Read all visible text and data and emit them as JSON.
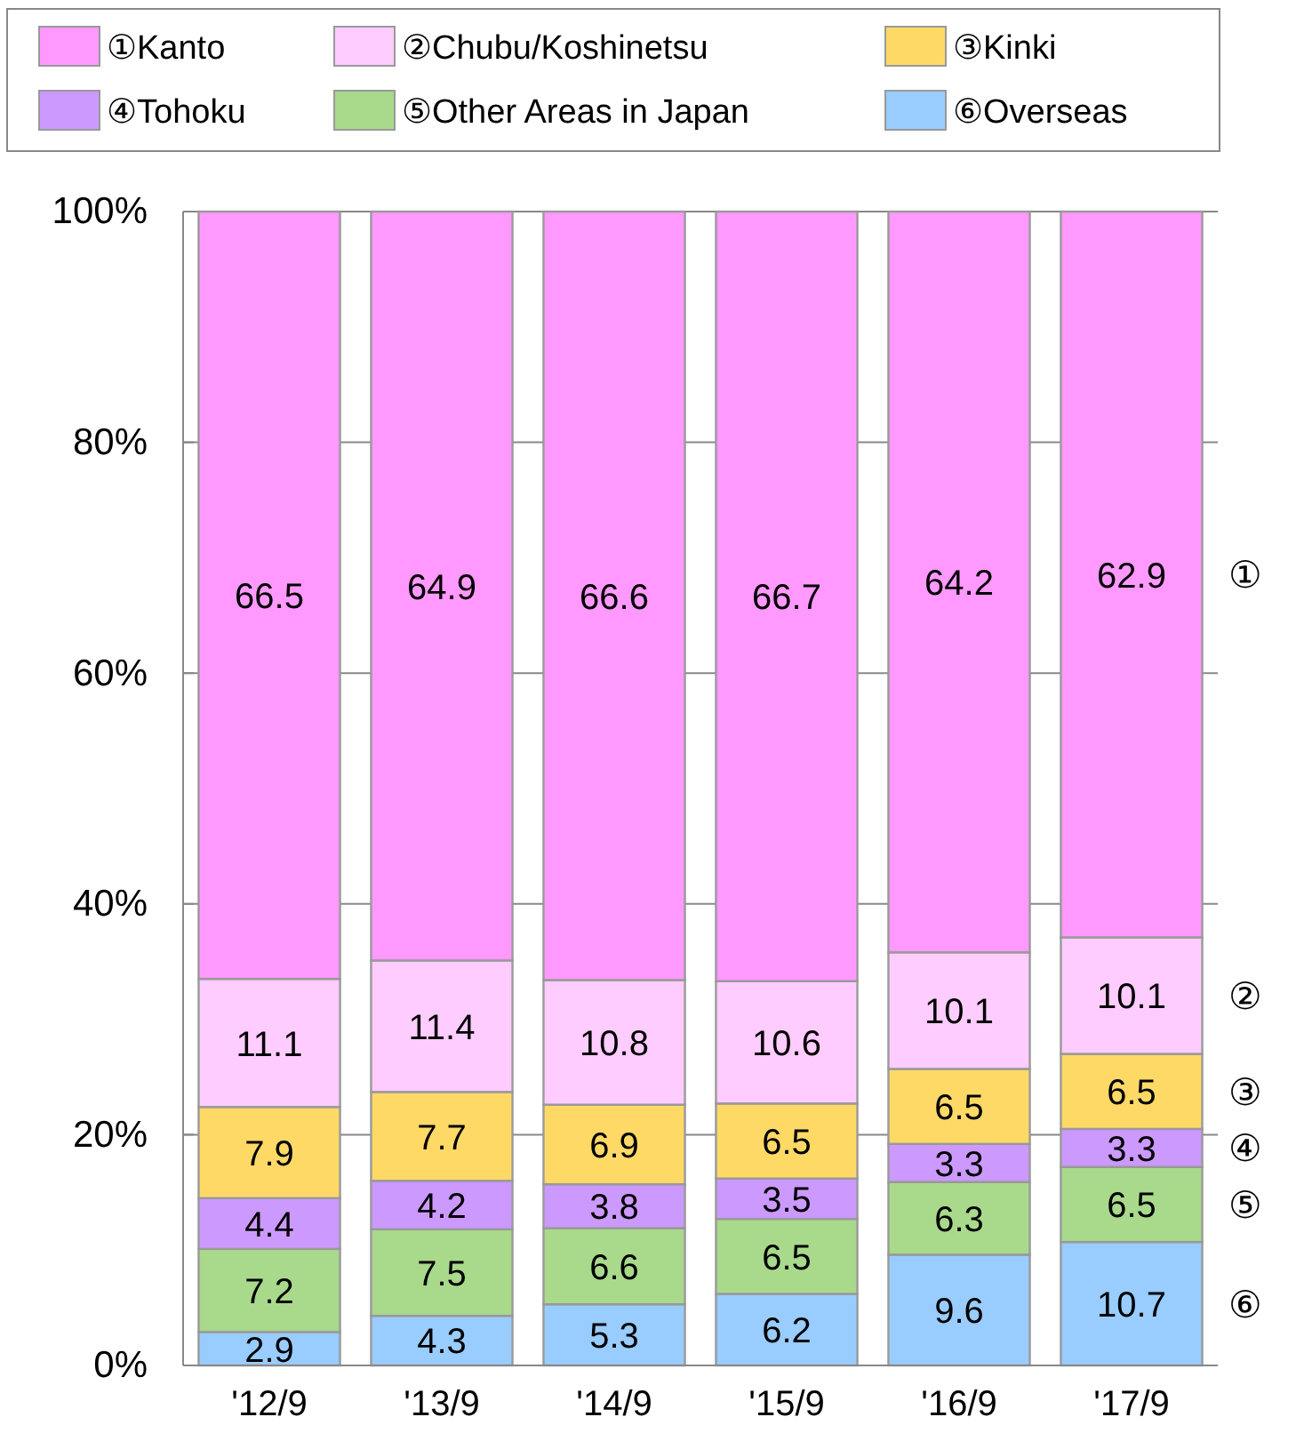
{
  "chart_data": {
    "type": "bar",
    "stacked": true,
    "categories": [
      "'12/9",
      "'13/9",
      "'14/9",
      "'15/9",
      "'16/9",
      "'17/9"
    ],
    "series": [
      {
        "name": "⑥Overseas",
        "color": "#99ccff",
        "values": [
          2.9,
          4.3,
          5.3,
          6.2,
          9.6,
          10.7
        ]
      },
      {
        "name": "⑤Other Areas in Japan",
        "color": "#a9d98b",
        "values": [
          7.2,
          7.5,
          6.6,
          6.5,
          6.3,
          6.5
        ]
      },
      {
        "name": "④Tohoku",
        "color": "#cc99ff",
        "values": [
          4.4,
          4.2,
          3.8,
          3.5,
          3.3,
          3.3
        ]
      },
      {
        "name": "③Kinki",
        "color": "#ffd966",
        "values": [
          7.9,
          7.7,
          6.9,
          6.5,
          6.5,
          6.5
        ]
      },
      {
        "name": "②Chubu/Koshinetsu",
        "color": "#ffccff",
        "values": [
          11.1,
          11.4,
          10.8,
          10.6,
          10.1,
          10.1
        ]
      },
      {
        "name": "①Kanto",
        "color": "#ff99ff",
        "values": [
          66.5,
          64.9,
          66.6,
          66.7,
          64.2,
          62.9
        ]
      }
    ],
    "ylim": [
      0,
      100
    ],
    "yticks": [
      {
        "value": 0,
        "label": "0%"
      },
      {
        "value": 20,
        "label": "20%"
      },
      {
        "value": 40,
        "label": "40%"
      },
      {
        "value": 60,
        "label": "60%"
      },
      {
        "value": 80,
        "label": "80%"
      },
      {
        "value": 100,
        "label": "100%"
      }
    ],
    "grid": "y",
    "legend": "top",
    "data_labels": true,
    "annotations": [
      "①",
      "②",
      "③",
      "④",
      "⑤",
      "⑥"
    ]
  }
}
